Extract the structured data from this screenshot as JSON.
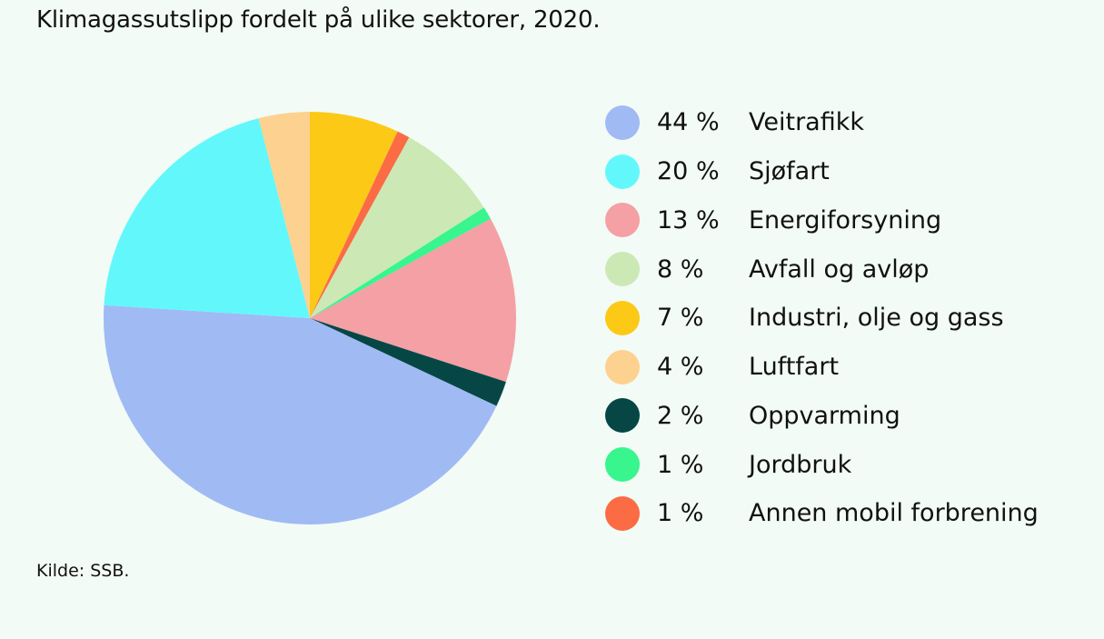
{
  "title": "Klimagassutslipp fordelt på ulike sektorer, 2020.",
  "source": "Kilde: SSB.",
  "chart_data": {
    "type": "pie",
    "title": "Klimagassutslipp fordelt på ulike sektorer, 2020.",
    "legend_position": "right",
    "slices": [
      {
        "label": "Veitrafikk",
        "percent_label": "44 %",
        "value": 44,
        "color": "#a0baf4"
      },
      {
        "label": "Sjøfart",
        "percent_label": "20 %",
        "value": 20,
        "color": "#62f8fb"
      },
      {
        "label": "Energiforsyning",
        "percent_label": "13 %",
        "value": 13,
        "color": "#f4a0a5"
      },
      {
        "label": "Avfall og avløp",
        "percent_label": "8 %",
        "value": 8,
        "color": "#cce8b5"
      },
      {
        "label": "Industri, olje og gass",
        "percent_label": "7 %",
        "value": 7,
        "color": "#fcc917"
      },
      {
        "label": "Luftfart",
        "percent_label": "4 %",
        "value": 4,
        "color": "#fdd190"
      },
      {
        "label": "Oppvarming",
        "percent_label": "2 %",
        "value": 2,
        "color": "#064746"
      },
      {
        "label": "Jordbruk",
        "percent_label": "1 %",
        "value": 1,
        "color": "#38f58e"
      },
      {
        "label": "Annen mobil forbrening",
        "percent_label": "1 %",
        "value": 1,
        "color": "#fb6b44"
      }
    ],
    "clockwise_order": [
      "Industri, olje og gass",
      "Annen mobil forbrening",
      "Avfall og avløp",
      "Jordbruk",
      "Energiforsyning",
      "Oppvarming",
      "Veitrafikk",
      "Sjøfart",
      "Luftfart"
    ]
  }
}
